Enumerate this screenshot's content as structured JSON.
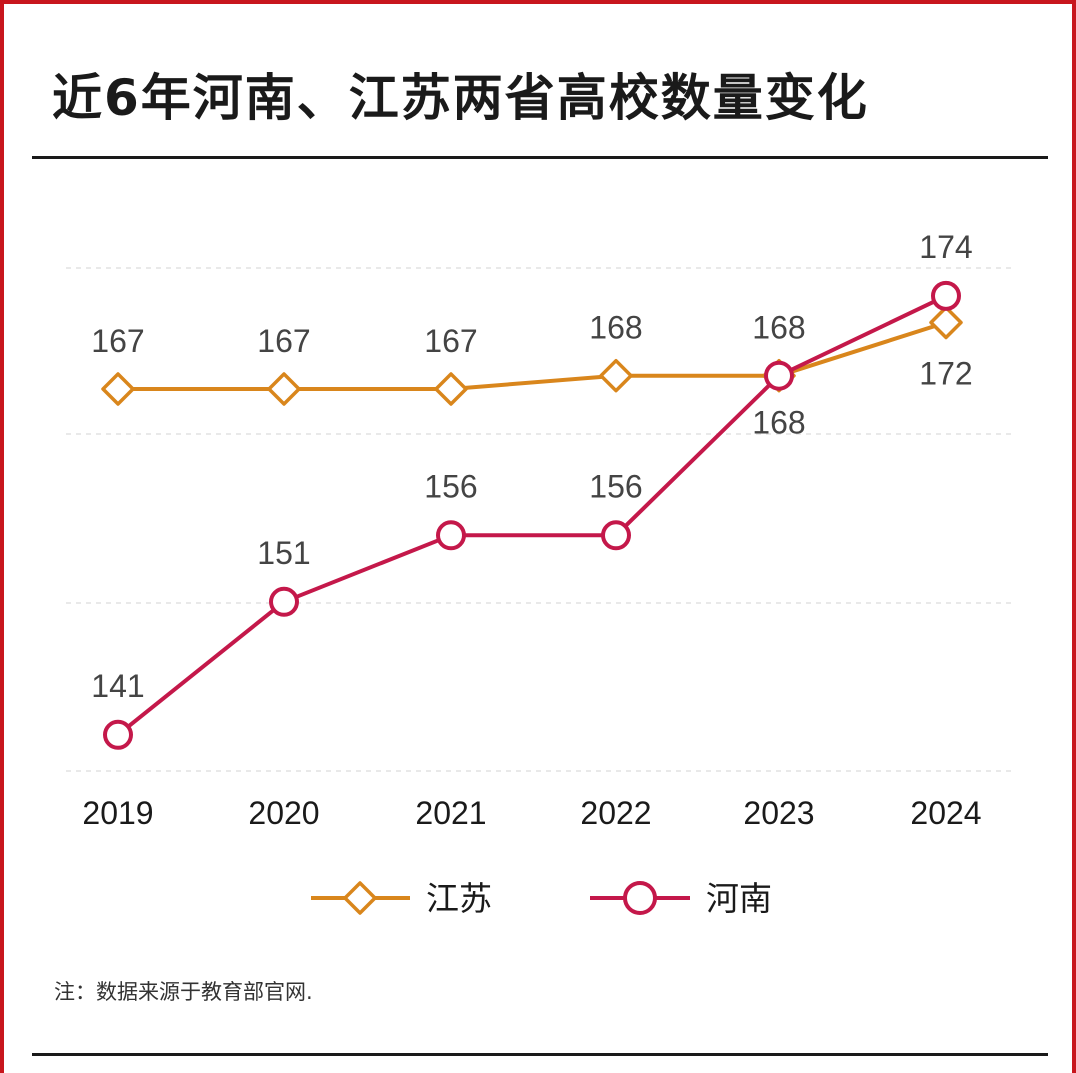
{
  "title": "近6年河南、江苏两省高校数量变化",
  "note": "注：数据来源于教育部官网.",
  "colors": {
    "jiangsu": "#d9861c",
    "henan": "#c4184a",
    "frame": "#c8161d"
  },
  "chart_data": {
    "type": "line",
    "x": [
      "2019",
      "2020",
      "2021",
      "2022",
      "2023",
      "2024"
    ],
    "ylim": [
      135,
      176
    ],
    "grid": true,
    "legend_position": "bottom",
    "series": [
      {
        "name": "江苏",
        "marker": "diamond",
        "values": [
          167,
          167,
          167,
          168,
          168,
          172
        ]
      },
      {
        "name": "河南",
        "marker": "circle",
        "values": [
          141,
          151,
          156,
          156,
          168,
          174
        ]
      }
    ]
  }
}
